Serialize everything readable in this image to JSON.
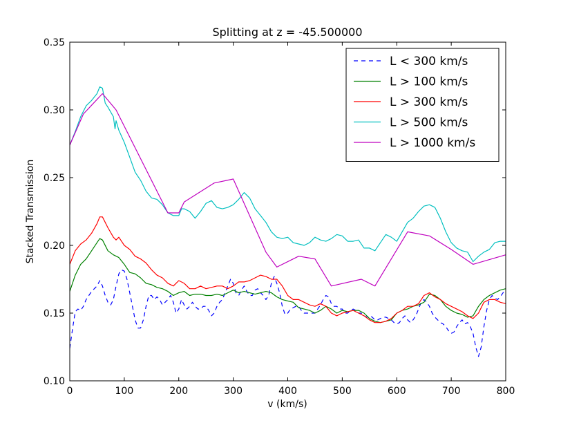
{
  "chart_data": {
    "type": "line",
    "title": "Splitting at z = -45.500000",
    "xlabel": "v (km/s)",
    "ylabel": "Stacked Transmission",
    "xlim": [
      0,
      800
    ],
    "ylim": [
      0.1,
      0.35
    ],
    "xticks": [
      0,
      100,
      200,
      300,
      400,
      500,
      600,
      700,
      800
    ],
    "yticks": [
      0.1,
      0.15,
      0.2,
      0.25,
      0.3,
      0.35
    ],
    "xtick_labels": [
      "0",
      "100",
      "200",
      "300",
      "400",
      "500",
      "600",
      "700",
      "800"
    ],
    "ytick_labels": [
      "0.10",
      "0.15",
      "0.20",
      "0.25",
      "0.30",
      "0.35"
    ],
    "grid": false,
    "legend_position": "top-right",
    "series": [
      {
        "name": "L < 300 km/s",
        "color": "#0000ff",
        "dash": true,
        "x": [
          0,
          5,
          10,
          15,
          20,
          25,
          30,
          35,
          40,
          45,
          50,
          55,
          60,
          65,
          70,
          75,
          80,
          85,
          90,
          95,
          100,
          105,
          110,
          115,
          120,
          125,
          130,
          135,
          140,
          145,
          150,
          155,
          160,
          165,
          170,
          175,
          180,
          185,
          190,
          195,
          200,
          205,
          210,
          215,
          220,
          225,
          230,
          235,
          240,
          245,
          250,
          255,
          260,
          265,
          270,
          275,
          280,
          285,
          290,
          295,
          300,
          305,
          310,
          315,
          320,
          325,
          330,
          335,
          340,
          345,
          350,
          355,
          360,
          365,
          370,
          375,
          380,
          385,
          390,
          395,
          400,
          405,
          410,
          415,
          420,
          425,
          430,
          435,
          440,
          445,
          450,
          455,
          460,
          465,
          470,
          475,
          480,
          485,
          490,
          495,
          500,
          505,
          510,
          515,
          520,
          525,
          530,
          535,
          540,
          545,
          550,
          555,
          560,
          565,
          570,
          575,
          580,
          585,
          590,
          595,
          600,
          605,
          610,
          615,
          620,
          625,
          630,
          635,
          640,
          645,
          650,
          655,
          660,
          665,
          670,
          675,
          680,
          685,
          690,
          695,
          700,
          705,
          710,
          715,
          720,
          725,
          730,
          735,
          740,
          745,
          750,
          755,
          760,
          765,
          770,
          775,
          780,
          785,
          790,
          795,
          800
        ],
        "y": [
          0.124,
          0.138,
          0.151,
          0.153,
          0.152,
          0.155,
          0.16,
          0.163,
          0.166,
          0.168,
          0.17,
          0.174,
          0.17,
          0.163,
          0.158,
          0.156,
          0.16,
          0.17,
          0.179,
          0.182,
          0.181,
          0.175,
          0.165,
          0.155,
          0.145,
          0.139,
          0.139,
          0.145,
          0.155,
          0.163,
          0.163,
          0.16,
          0.162,
          0.16,
          0.156,
          0.158,
          0.16,
          0.163,
          0.158,
          0.15,
          0.153,
          0.16,
          0.156,
          0.153,
          0.155,
          0.158,
          0.155,
          0.153,
          0.153,
          0.155,
          0.155,
          0.152,
          0.148,
          0.15,
          0.155,
          0.158,
          0.16,
          0.165,
          0.17,
          0.175,
          0.172,
          0.165,
          0.163,
          0.167,
          0.17,
          0.166,
          0.163,
          0.163,
          0.167,
          0.168,
          0.165,
          0.163,
          0.16,
          0.163,
          0.172,
          0.177,
          0.172,
          0.165,
          0.155,
          0.149,
          0.15,
          0.153,
          0.154,
          0.155,
          0.155,
          0.152,
          0.15,
          0.15,
          0.15,
          0.15,
          0.15,
          0.153,
          0.156,
          0.16,
          0.163,
          0.162,
          0.157,
          0.155,
          0.155,
          0.153,
          0.153,
          0.15,
          0.15,
          0.152,
          0.153,
          0.152,
          0.15,
          0.15,
          0.148,
          0.147,
          0.148,
          0.147,
          0.145,
          0.145,
          0.146,
          0.147,
          0.147,
          0.146,
          0.145,
          0.143,
          0.142,
          0.143,
          0.146,
          0.148,
          0.145,
          0.143,
          0.145,
          0.148,
          0.153,
          0.158,
          0.16,
          0.158,
          0.155,
          0.15,
          0.147,
          0.145,
          0.143,
          0.142,
          0.14,
          0.137,
          0.135,
          0.136,
          0.14,
          0.143,
          0.145,
          0.142,
          0.143,
          0.14,
          0.135,
          0.125,
          0.118,
          0.125,
          0.14,
          0.152,
          0.16,
          0.163,
          0.161,
          0.16,
          0.162,
          0.165,
          0.167
        ]
      },
      {
        "name": "L > 100 km/s",
        "color": "#008000",
        "dash": false,
        "x": [
          0,
          10,
          20,
          30,
          40,
          50,
          55,
          60,
          70,
          80,
          90,
          100,
          110,
          120,
          130,
          140,
          150,
          160,
          170,
          180,
          190,
          200,
          210,
          220,
          230,
          240,
          250,
          260,
          270,
          280,
          290,
          300,
          310,
          320,
          330,
          340,
          350,
          360,
          370,
          380,
          390,
          400,
          410,
          420,
          430,
          440,
          450,
          460,
          470,
          480,
          490,
          500,
          510,
          520,
          530,
          540,
          550,
          560,
          570,
          580,
          590,
          600,
          610,
          620,
          630,
          640,
          650,
          660,
          670,
          680,
          690,
          700,
          710,
          720,
          730,
          740,
          750,
          760,
          770,
          780,
          790,
          800
        ],
        "y": [
          0.166,
          0.178,
          0.186,
          0.19,
          0.196,
          0.202,
          0.205,
          0.204,
          0.196,
          0.193,
          0.191,
          0.186,
          0.18,
          0.179,
          0.176,
          0.172,
          0.171,
          0.169,
          0.168,
          0.166,
          0.163,
          0.165,
          0.166,
          0.163,
          0.164,
          0.164,
          0.163,
          0.163,
          0.164,
          0.163,
          0.165,
          0.167,
          0.165,
          0.166,
          0.165,
          0.164,
          0.165,
          0.166,
          0.165,
          0.162,
          0.16,
          0.159,
          0.158,
          0.154,
          0.153,
          0.152,
          0.15,
          0.152,
          0.155,
          0.153,
          0.15,
          0.152,
          0.151,
          0.152,
          0.152,
          0.15,
          0.146,
          0.144,
          0.143,
          0.144,
          0.145,
          0.15,
          0.152,
          0.153,
          0.155,
          0.156,
          0.158,
          0.164,
          0.163,
          0.16,
          0.155,
          0.152,
          0.15,
          0.149,
          0.147,
          0.148,
          0.155,
          0.16,
          0.163,
          0.165,
          0.167,
          0.168
        ]
      },
      {
        "name": "L > 300 km/s",
        "color": "#ff0000",
        "dash": false,
        "x": [
          0,
          10,
          20,
          30,
          40,
          50,
          55,
          60,
          70,
          80,
          85,
          90,
          100,
          110,
          120,
          130,
          140,
          150,
          160,
          170,
          180,
          190,
          200,
          210,
          220,
          230,
          240,
          250,
          260,
          270,
          280,
          290,
          300,
          310,
          320,
          330,
          340,
          350,
          360,
          370,
          380,
          390,
          400,
          410,
          420,
          430,
          440,
          450,
          460,
          470,
          480,
          490,
          500,
          510,
          520,
          530,
          540,
          550,
          560,
          570,
          580,
          590,
          600,
          610,
          620,
          630,
          640,
          650,
          660,
          670,
          680,
          690,
          700,
          710,
          720,
          730,
          740,
          750,
          760,
          770,
          780,
          790,
          800
        ],
        "y": [
          0.186,
          0.196,
          0.201,
          0.204,
          0.209,
          0.216,
          0.221,
          0.221,
          0.213,
          0.206,
          0.204,
          0.206,
          0.2,
          0.197,
          0.192,
          0.19,
          0.187,
          0.182,
          0.178,
          0.176,
          0.172,
          0.17,
          0.174,
          0.172,
          0.168,
          0.168,
          0.17,
          0.168,
          0.169,
          0.17,
          0.17,
          0.168,
          0.17,
          0.173,
          0.173,
          0.174,
          0.176,
          0.178,
          0.177,
          0.175,
          0.175,
          0.17,
          0.163,
          0.16,
          0.16,
          0.158,
          0.156,
          0.155,
          0.157,
          0.155,
          0.15,
          0.148,
          0.15,
          0.151,
          0.152,
          0.15,
          0.148,
          0.145,
          0.143,
          0.143,
          0.144,
          0.146,
          0.15,
          0.152,
          0.155,
          0.155,
          0.157,
          0.163,
          0.165,
          0.162,
          0.16,
          0.157,
          0.155,
          0.153,
          0.151,
          0.148,
          0.146,
          0.15,
          0.158,
          0.16,
          0.16,
          0.158,
          0.157
        ]
      },
      {
        "name": "L > 500 km/s",
        "color": "#00bfbf",
        "dash": false,
        "x": [
          0,
          10,
          20,
          30,
          40,
          50,
          55,
          60,
          65,
          70,
          80,
          83,
          85,
          90,
          100,
          110,
          120,
          130,
          140,
          150,
          160,
          170,
          180,
          190,
          200,
          205,
          210,
          220,
          230,
          240,
          250,
          260,
          270,
          280,
          290,
          300,
          310,
          320,
          330,
          340,
          350,
          360,
          370,
          380,
          390,
          400,
          410,
          420,
          430,
          440,
          450,
          460,
          470,
          480,
          490,
          500,
          510,
          520,
          530,
          540,
          550,
          560,
          570,
          580,
          590,
          600,
          610,
          620,
          630,
          640,
          650,
          660,
          670,
          680,
          690,
          700,
          710,
          720,
          730,
          740,
          750,
          760,
          770,
          780,
          790,
          800
        ],
        "y": [
          0.274,
          0.284,
          0.295,
          0.303,
          0.307,
          0.312,
          0.317,
          0.316,
          0.305,
          0.302,
          0.295,
          0.286,
          0.292,
          0.285,
          0.276,
          0.265,
          0.254,
          0.248,
          0.24,
          0.235,
          0.234,
          0.23,
          0.224,
          0.222,
          0.222,
          0.227,
          0.227,
          0.225,
          0.22,
          0.225,
          0.231,
          0.233,
          0.228,
          0.227,
          0.228,
          0.23,
          0.234,
          0.239,
          0.235,
          0.227,
          0.222,
          0.217,
          0.21,
          0.206,
          0.205,
          0.206,
          0.202,
          0.201,
          0.2,
          0.202,
          0.206,
          0.204,
          0.203,
          0.205,
          0.208,
          0.207,
          0.203,
          0.203,
          0.204,
          0.198,
          0.198,
          0.196,
          0.202,
          0.208,
          0.206,
          0.203,
          0.21,
          0.217,
          0.22,
          0.225,
          0.229,
          0.23,
          0.228,
          0.22,
          0.21,
          0.202,
          0.198,
          0.196,
          0.195,
          0.188,
          0.192,
          0.195,
          0.197,
          0.202,
          0.203,
          0.203
        ]
      },
      {
        "name": "L > 1000 km/s",
        "color": "#bf00bf",
        "dash": false,
        "x": [
          0,
          25,
          60,
          85,
          180,
          200,
          210,
          265,
          300,
          360,
          380,
          420,
          450,
          480,
          535,
          560,
          620,
          660,
          700,
          740,
          800
        ],
        "y": [
          0.274,
          0.297,
          0.312,
          0.3,
          0.224,
          0.224,
          0.232,
          0.246,
          0.249,
          0.195,
          0.184,
          0.192,
          0.19,
          0.17,
          0.175,
          0.17,
          0.21,
          0.207,
          0.197,
          0.186,
          0.193
        ]
      }
    ]
  }
}
